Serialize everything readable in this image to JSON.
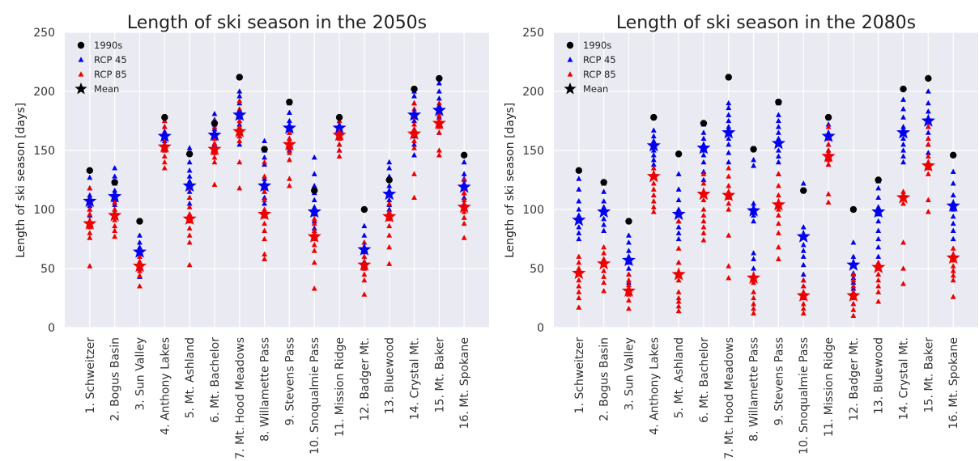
{
  "chart_data": [
    {
      "type": "scatter",
      "title": "Length of ski season in the 2050s",
      "ylabel": "Length of ski season [days]",
      "xlabel": "",
      "ylim": [
        0,
        250
      ],
      "yticks": [
        0,
        50,
        100,
        150,
        200,
        250
      ],
      "grid": true,
      "legend_position": "top-left",
      "categories": [
        "1. Schweitzer",
        "2. Bogus Basin",
        "3. Sun Valley",
        "4. Anthony Lakes",
        "5. Mt. Ashland",
        "6. Mt. Bachelor",
        "7. Mt. Hood Meadows",
        "8. Willamette Pass",
        "9. Stevens Pass",
        "10. Snoqualmie Pass",
        "11. Mission Ridge",
        "12. Badger Mt.",
        "13. Bluewood",
        "14. Crystal Mt.",
        "15. Mt. Baker",
        "16. Mt. Spokane"
      ],
      "series": [
        {
          "name": "1990s",
          "color": "#000000",
          "marker": "circle",
          "values": [
            133,
            123,
            90,
            178,
            147,
            173,
            212,
            151,
            191,
            116,
            178,
            100,
            125,
            202,
            211,
            146
          ]
        },
        {
          "name": "RCP 45",
          "color": "#0000ee",
          "marker": "triangle",
          "values": [
            [
              95,
              100,
              103,
              108,
              112,
              118,
              127
            ],
            [
              100,
              104,
              108,
              112,
              116,
              122,
              128,
              135
            ],
            [
              43,
              50,
              55,
              60,
              64,
              68,
              72,
              78
            ],
            [
              150,
              155,
              158,
              162,
              166,
              170,
              175
            ],
            [
              105,
              110,
              115,
              120,
              124,
              128,
              133,
              140,
              147,
              152
            ],
            [
              148,
              152,
              155,
              160,
              165,
              168,
              172,
              176,
              181
            ],
            [
              155,
              162,
              168,
              172,
              178,
              184,
              190,
              196,
              200
            ],
            [
              105,
              110,
              115,
              118,
              122,
              126,
              138,
              144,
              150,
              158
            ],
            [
              150,
              155,
              160,
              165,
              170,
              175,
              182,
              190
            ],
            [
              78,
              84,
              90,
              96,
              102,
              108,
              114,
              120,
              130,
              144
            ],
            [
              150,
              155,
              160,
              165,
              170,
              175
            ],
            [
              50,
              56,
              60,
              64,
              68,
              72,
              78,
              86,
              100
            ],
            [
              100,
              104,
              108,
              112,
              116,
              120,
              128,
              135,
              140
            ],
            [
              146,
              155,
              162,
              168,
              175,
              180,
              190,
              196,
              200
            ],
            [
              165,
              172,
              178,
              183,
              188,
              194,
              200,
              207
            ],
            [
              105,
              110,
              114,
              118,
              122,
              126,
              130,
              140
            ]
          ]
        },
        {
          "name": "RCP 85",
          "color": "#ee0000",
          "marker": "triangle",
          "values": [
            [
              52,
              76,
              80,
              85,
              90,
              96,
              100,
              105,
              110,
              118
            ],
            [
              77,
              82,
              86,
              91,
              95,
              100,
              106,
              112
            ],
            [
              35,
              44,
              48,
              52,
              56,
              60
            ],
            [
              135,
              140,
              145,
              150,
              155,
              160,
              165,
              170,
              175
            ],
            [
              53,
              72,
              78,
              84,
              90,
              96,
              102,
              110,
              118
            ],
            [
              121,
              140,
              144,
              148,
              152,
              156,
              160,
              165,
              170,
              175
            ],
            [
              118,
              140,
              158,
              162,
              166,
              170,
              175,
              180,
              185,
              192
            ],
            [
              58,
              62,
              75,
              82,
              88,
              94,
              100,
              108,
              115,
              128,
              140
            ],
            [
              120,
              126,
              142,
              148,
              152,
              156,
              160,
              165
            ],
            [
              33,
              55,
              65,
              70,
              75,
              78,
              82,
              88,
              92,
              100
            ],
            [
              145,
              150,
              155,
              160,
              165,
              170,
              175
            ],
            [
              28,
              40,
              45,
              50,
              55,
              60,
              65,
              72
            ],
            [
              54,
              68,
              78,
              86,
              92,
              98,
              105
            ],
            [
              110,
              130,
              152,
              158,
              163,
              168,
              172,
              178,
              185,
              190
            ],
            [
              146,
              150,
              165,
              170,
              175,
              180,
              185,
              190
            ],
            [
              76,
              88,
              93,
              98,
              103,
              108,
              114,
              120,
              125
            ]
          ]
        },
        {
          "name": "Mean",
          "color": "#000000",
          "marker": "star",
          "rcp45_mean": [
            107,
            111,
            64,
            162,
            120,
            163,
            180,
            120,
            169,
            98,
            169,
            66,
            113,
            180,
            184,
            119
          ],
          "rcp85_mean": [
            88,
            95,
            52,
            153,
            92,
            151,
            166,
            96,
            155,
            77,
            163,
            53,
            94,
            164,
            173,
            102
          ]
        }
      ]
    },
    {
      "type": "scatter",
      "title": "Length of ski season in the 2080s",
      "ylabel": "Length of ski season [days]",
      "xlabel": "",
      "ylim": [
        0,
        250
      ],
      "yticks": [
        0,
        50,
        100,
        150,
        200,
        250
      ],
      "grid": true,
      "legend_position": "top-left",
      "categories": [
        "1. Schweitzer",
        "2. Bogus Basin",
        "3. Sun Valley",
        "4. Anthony Lakes",
        "5. Mt. Ashland",
        "6. Mt. Bachelor",
        "7. Mt. Hood Meadows",
        "8. Willamette Pass",
        "9. Stevens Pass",
        "10. Snoqualmie Pass",
        "11. Mission Ridge",
        "12. Badger Mt.",
        "13. Bluewood",
        "14. Crystal Mt.",
        "15. Mt. Baker",
        "16. Mt. Spokane"
      ],
      "series": [
        {
          "name": "1990s",
          "color": "#000000",
          "marker": "circle",
          "values": [
            133,
            123,
            90,
            178,
            147,
            173,
            212,
            151,
            191,
            116,
            178,
            100,
            125,
            202,
            211,
            146
          ]
        },
        {
          "name": "RCP 45",
          "color": "#0000ee",
          "marker": "triangle",
          "values": [
            [
              75,
              80,
              85,
              90,
              95,
              100,
              107,
              117,
              126
            ],
            [
              82,
              87,
              92,
              97,
              102,
              107,
              115,
              122
            ],
            [
              38,
              45,
              50,
              55,
              60,
              65,
              72,
              78
            ],
            [
              138,
              142,
              146,
              150,
              154,
              158,
              162,
              167
            ],
            [
              55,
              75,
              80,
              85,
              90,
              95,
              100,
              108,
              117,
              130
            ],
            [
              125,
              132,
              140,
              146,
              150,
              155,
              160,
              165,
              172
            ],
            [
              140,
              148,
              155,
              160,
              165,
              170,
              175,
              180,
              186,
              190
            ],
            [
              50,
              58,
              63,
              90,
              95,
              100,
              105,
              137,
              142
            ],
            [
              130,
              140,
              145,
              150,
              155,
              160,
              165,
              170,
              175,
              180,
              190
            ],
            [
              25,
              35,
              40,
              45,
              53,
              60,
              65,
              70,
              77,
              85,
              122
            ],
            [
              138,
              145,
              150,
              155,
              160,
              165,
              172
            ],
            [
              20,
              27,
              33,
              38,
              42,
              46,
              60,
              72
            ],
            [
              60,
              68,
              75,
              82,
              90,
              96,
              102,
              110,
              118,
              124
            ],
            [
              140,
              145,
              150,
              155,
              160,
              165,
              170,
              178,
              185,
              193
            ],
            [
              140,
              148,
              155,
              160,
              165,
              170,
              176,
              183,
              190,
              200
            ],
            [
              75,
              82,
              88,
              94,
              100,
              106,
              112,
              122,
              132
            ]
          ]
        },
        {
          "name": "RCP 85",
          "color": "#ee0000",
          "marker": "triangle",
          "values": [
            [
              17,
              25,
              30,
              35,
              40,
              45,
              50,
              55,
              60
            ],
            [
              31,
              38,
              43,
              48,
              53,
              58,
              63,
              68
            ],
            [
              16,
              23,
              28,
              32,
              36,
              40,
              45
            ],
            [
              98,
              102,
              107,
              112,
              117,
              122,
              127,
              135
            ],
            [
              14,
              18,
              22,
              25,
              30,
              40,
              55,
              67,
              90
            ],
            [
              74,
              80,
              85,
              90,
              95,
              100,
              108,
              115,
              122,
              130
            ],
            [
              42,
              52,
              78,
              100,
              105,
              110,
              115,
              120,
              128,
              135
            ],
            [
              12,
              16,
              20,
              25,
              30,
              38
            ],
            [
              58,
              68,
              80,
              88,
              95,
              100,
              106,
              112,
              120,
              130
            ],
            [
              12,
              16,
              20,
              25,
              30,
              35,
              40
            ],
            [
              106,
              113,
              138,
              142,
              146,
              150,
              155,
              160,
              170
            ],
            [
              10,
              15,
              20,
              25,
              30,
              35,
              40,
              45
            ],
            [
              22,
              30,
              35,
              40,
              45,
              50,
              55
            ],
            [
              37,
              50,
              72,
              105,
              110,
              115
            ],
            [
              98,
              108,
              130,
              135,
              140,
              145,
              155,
              160,
              170
            ],
            [
              26,
              40,
              44,
              48,
              52,
              57,
              62,
              67
            ]
          ]
        },
        {
          "name": "Mean",
          "color": "#000000",
          "marker": "star",
          "rcp45_mean": [
            91,
            98,
            57,
            154,
            96,
            152,
            165,
            99,
            156,
            77,
            162,
            53,
            98,
            165,
            175,
            103
          ],
          "rcp85_mean": [
            46,
            54,
            31,
            128,
            45,
            113,
            112,
            42,
            104,
            27,
            145,
            27,
            51,
            110,
            137,
            59
          ]
        }
      ]
    }
  ]
}
